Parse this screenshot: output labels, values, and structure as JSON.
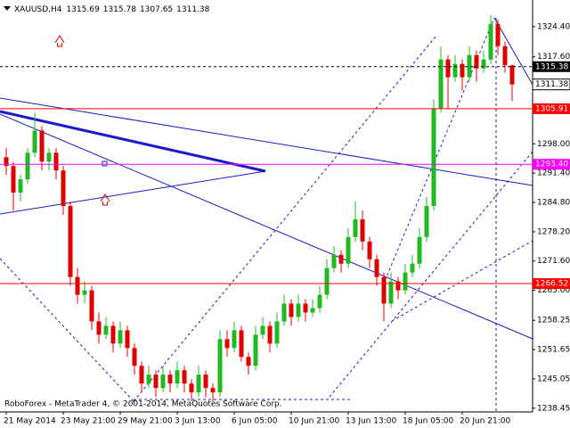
{
  "chart_data": {
    "type": "candlestick",
    "title": "XAUUSD,H4",
    "footer": "RoboForex - MetaTrader 4, © 2001-2014, MetaQuotes Software Corp.",
    "bull_color": "#22b822",
    "bear_color": "#e00000",
    "categories": [
      "21 May 2014",
      null,
      null,
      null,
      null,
      null,
      null,
      null,
      "23 May 21:00",
      null,
      null,
      null,
      null,
      null,
      null,
      null,
      "29 May 21:00",
      null,
      null,
      null,
      null,
      null,
      null,
      null,
      "3 Jun 13:00",
      null,
      null,
      null,
      null,
      null,
      null,
      null,
      "6 Jun 05:00",
      null,
      null,
      null,
      null,
      null,
      null,
      null,
      "10 Jun 21:00",
      null,
      null,
      null,
      null,
      null,
      null,
      null,
      "13 Jun 13:00",
      null,
      null,
      null,
      null,
      null,
      null,
      null,
      "18 Jun 05:00",
      null,
      null,
      null,
      null,
      null,
      null,
      null,
      "20 Jun 21:00",
      null,
      null,
      null,
      null,
      null,
      null,
      null
    ],
    "candles": [
      [
        1295,
        1297,
        1291,
        1293
      ],
      [
        1293,
        1294,
        1283,
        1287
      ],
      [
        1287,
        1291,
        1285,
        1290
      ],
      [
        1290,
        1297,
        1289,
        1296
      ],
      [
        1296,
        1305,
        1295,
        1301
      ],
      [
        1301,
        1302,
        1292,
        1294
      ],
      [
        1294,
        1297,
        1292,
        1296
      ],
      [
        1296,
        1297,
        1290,
        1292
      ],
      [
        1292,
        1293,
        1282,
        1284
      ],
      [
        1284,
        1285,
        1266,
        1268
      ],
      [
        1268,
        1270,
        1262,
        1264
      ],
      [
        1264,
        1267,
        1262,
        1265
      ],
      [
        1265,
        1266,
        1256,
        1258
      ],
      [
        1258,
        1260,
        1253,
        1255
      ],
      [
        1255,
        1259,
        1254,
        1257
      ],
      [
        1257,
        1258,
        1251,
        1253
      ],
      [
        1253,
        1258,
        1252,
        1256
      ],
      [
        1256,
        1257,
        1250,
        1252
      ],
      [
        1252,
        1253,
        1246,
        1248
      ],
      [
        1248,
        1249,
        1242,
        1244
      ],
      [
        1244,
        1248,
        1243,
        1246
      ],
      [
        1246,
        1247,
        1241,
        1243
      ],
      [
        1243,
        1248,
        1242,
        1246
      ],
      [
        1246,
        1247,
        1242,
        1244
      ],
      [
        1244,
        1249,
        1243,
        1247
      ],
      [
        1247,
        1248,
        1242,
        1244
      ],
      [
        1244,
        1245,
        1240,
        1242
      ],
      [
        1242,
        1248,
        1241,
        1246
      ],
      [
        1246,
        1247,
        1241,
        1243
      ],
      [
        1243,
        1244,
        1240,
        1242
      ],
      [
        1242,
        1256,
        1241,
        1254
      ],
      [
        1254,
        1256,
        1250,
        1252
      ],
      [
        1252,
        1258,
        1251,
        1256
      ],
      [
        1256,
        1257,
        1249,
        1250
      ],
      [
        1250,
        1251,
        1246,
        1248
      ],
      [
        1248,
        1257,
        1247,
        1255
      ],
      [
        1255,
        1259,
        1254,
        1257
      ],
      [
        1257,
        1258,
        1251,
        1253
      ],
      [
        1253,
        1260,
        1252,
        1258
      ],
      [
        1258,
        1264,
        1257,
        1262
      ],
      [
        1262,
        1263,
        1257,
        1259
      ],
      [
        1259,
        1264,
        1258,
        1262
      ],
      [
        1262,
        1263,
        1258,
        1260
      ],
      [
        1260,
        1263,
        1259,
        1261
      ],
      [
        1261,
        1266,
        1260,
        1264
      ],
      [
        1264,
        1272,
        1263,
        1270
      ],
      [
        1270,
        1275,
        1269,
        1273
      ],
      [
        1273,
        1274,
        1269,
        1271
      ],
      [
        1271,
        1279,
        1270,
        1277
      ],
      [
        1277,
        1285,
        1276,
        1281
      ],
      [
        1281,
        1283,
        1274,
        1276
      ],
      [
        1276,
        1277,
        1270,
        1272
      ],
      [
        1272,
        1273,
        1266,
        1268
      ],
      [
        1268,
        1269,
        1258,
        1262
      ],
      [
        1262,
        1269,
        1261,
        1267
      ],
      [
        1267,
        1268,
        1263,
        1265
      ],
      [
        1265,
        1271,
        1264,
        1269
      ],
      [
        1269,
        1273,
        1268,
        1271
      ],
      [
        1271,
        1279,
        1270,
        1277
      ],
      [
        1277,
        1286,
        1276,
        1284
      ],
      [
        1284,
        1308,
        1283,
        1306
      ],
      [
        1306,
        1320,
        1305,
        1317
      ],
      [
        1317,
        1318,
        1306,
        1313
      ],
      [
        1313,
        1318,
        1312,
        1316
      ],
      [
        1316,
        1317,
        1310,
        1313
      ],
      [
        1313,
        1320,
        1312,
        1318
      ],
      [
        1318,
        1319,
        1312,
        1315
      ],
      [
        1315,
        1319,
        1314,
        1317
      ],
      [
        1317,
        1327,
        1316,
        1325
      ],
      [
        1325,
        1326,
        1318,
        1320
      ],
      [
        1320,
        1321,
        1314,
        1315.69
      ],
      [
        1315.69,
        1315.78,
        1307.65,
        1311.38
      ]
    ],
    "ylim": [
      1237.6,
      1330.4
    ],
    "yticks": [
      {
        "value": 1324.4,
        "label": "1324.40"
      },
      {
        "value": 1317.6,
        "label": "1317.60"
      },
      {
        "value": 1298,
        "label": "1298.00"
      },
      {
        "value": 1291.4,
        "label": "1291.40"
      },
      {
        "value": 1284.8,
        "label": "1284.80"
      },
      {
        "value": 1278.2,
        "label": "1278.20"
      },
      {
        "value": 1271.6,
        "label": "1271.60"
      },
      {
        "value": 1265,
        "label": "1265.00"
      },
      1258.25,
      1251.65,
      1245.05,
      1238.45
    ],
    "grid": false,
    "levels": [
      {
        "value": 1315.38,
        "label": "1315.38",
        "color": "#000000",
        "style": "dashed"
      },
      {
        "value": 1305.91,
        "label": "1305.91",
        "color": "#ff0000",
        "style": "solid"
      },
      {
        "value": 1293.4,
        "label": "1293.40",
        "color": "#ff00ff",
        "style": "solid"
      },
      {
        "value": 1266.52,
        "label": "1266.52",
        "color": "#ff0000",
        "style": "solid"
      }
    ]
  }
}
